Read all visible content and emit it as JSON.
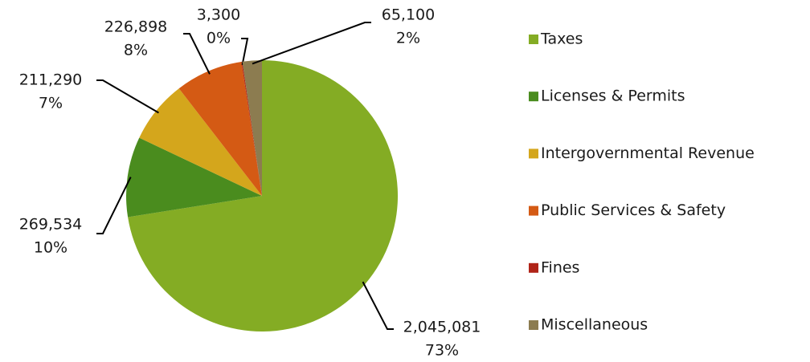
{
  "chart_data": {
    "type": "pie",
    "categories": [
      "Taxes",
      "Licenses & Permits",
      "Intergovernmental Revenue",
      "Public Services & Safety",
      "Fines",
      "Miscellaneous"
    ],
    "values": [
      2045081,
      269534,
      211290,
      226898,
      3300,
      65100
    ],
    "value_labels": [
      "2,045,081",
      "269,534",
      "211,290",
      "226,898",
      "3,300",
      "65,100"
    ],
    "percentages": [
      73,
      10,
      7,
      8,
      0,
      2
    ],
    "percentage_labels": [
      "73%",
      "10%",
      "7%",
      "8%",
      "0%",
      "2%"
    ],
    "colors": [
      "#84ac24",
      "#4a8c1e",
      "#d4a61c",
      "#d45a14",
      "#b02418",
      "#8c7c50"
    ],
    "legend": "right"
  }
}
